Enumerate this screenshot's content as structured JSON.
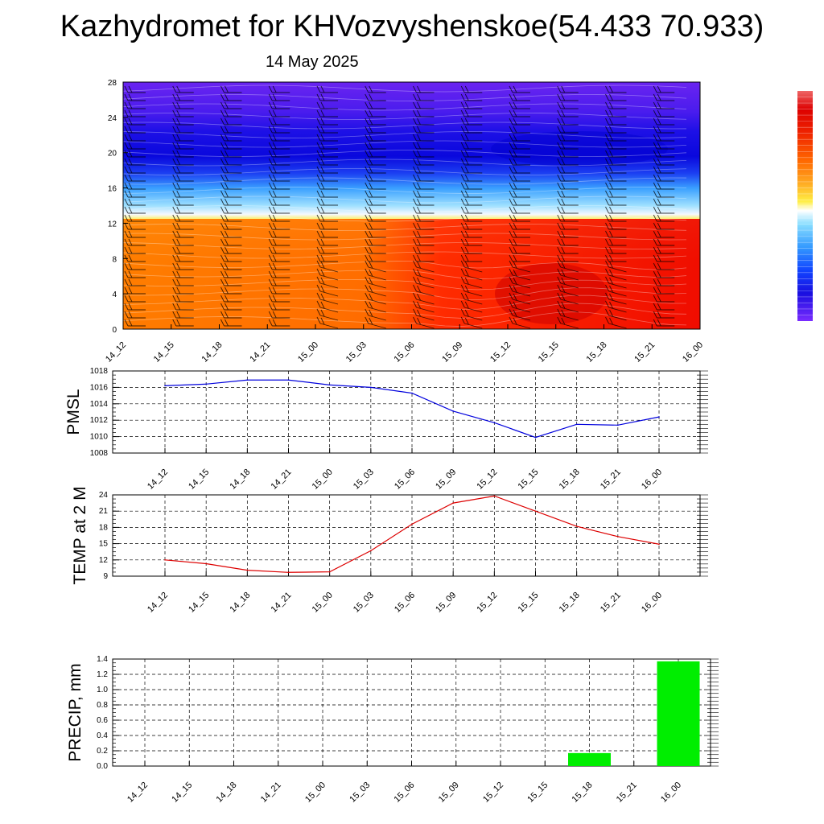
{
  "title": "Kazhydromet for KHVozvyshenskoe(54.433 70.933)",
  "subtitle": "14 May 2025",
  "colors": {
    "pmsl_line": "#0000dd",
    "temp_line": "#dd0000",
    "precip_bar": "#00ee00",
    "axis": "#000000",
    "grid": "#000000"
  },
  "chart_data": [
    {
      "type": "heatmap",
      "title": "",
      "xlabel": "",
      "ylabel": "",
      "categories": [
        "14_12",
        "14_15",
        "14_18",
        "14_21",
        "15_00",
        "15_03",
        "15_06",
        "15_09",
        "15_12",
        "15_15",
        "15_18",
        "15_21",
        "16_00"
      ],
      "yticks": [
        0,
        4,
        8,
        12,
        16,
        20,
        24,
        28
      ],
      "ylim": [
        0,
        28
      ],
      "layers": [
        {
          "y0": 0,
          "y1": 12.5,
          "description_level": "warm",
          "color_west": "#ff7a00",
          "color_east": "#ee0000"
        },
        {
          "y0": 12.5,
          "y1": 14,
          "color": "#ffee66"
        },
        {
          "y0": 14,
          "y1": 17,
          "color": "#55bbff"
        },
        {
          "y0": 17,
          "y1": 24,
          "color": "#1111ee"
        },
        {
          "y0": 24,
          "y1": 28,
          "color": "#6622ee"
        }
      ],
      "wind_barbs": true,
      "colorbar": [
        "#7a2bff",
        "#5522ee",
        "#2211ee",
        "#0000dd",
        "#1144ff",
        "#3388ff",
        "#55bbff",
        "#88ddff",
        "#ffffff",
        "#ffff66",
        "#ffcc33",
        "#ff9922",
        "#ff7700",
        "#ff4400",
        "#ee0000",
        "#cc0000",
        "#ee6666"
      ]
    },
    {
      "type": "line",
      "ylabel": "PMSL",
      "categories": [
        "14_12",
        "14_15",
        "14_18",
        "14_21",
        "15_00",
        "15_03",
        "15_06",
        "15_09",
        "15_12",
        "15_15",
        "15_18",
        "15_21",
        "16_00"
      ],
      "yticks": [
        1008,
        1010,
        1012,
        1014,
        1016,
        1018
      ],
      "ylim": [
        1008,
        1018
      ],
      "grid": true,
      "series": [
        {
          "values": [
            1016.2,
            1016.4,
            1016.9,
            1016.9,
            1016.3,
            1016.0,
            1015.3,
            1013.1,
            1011.7,
            1009.9,
            1011.5,
            1011.4,
            1012.4
          ]
        }
      ]
    },
    {
      "type": "line",
      "ylabel": "TEMP at 2 M",
      "categories": [
        "14_12",
        "14_15",
        "14_18",
        "14_21",
        "15_00",
        "15_03",
        "15_06",
        "15_09",
        "15_12",
        "15_15",
        "15_18",
        "15_21",
        "16_00"
      ],
      "yticks": [
        9,
        12,
        15,
        18,
        21,
        24
      ],
      "ylim": [
        9,
        24
      ],
      "grid": true,
      "series": [
        {
          "values": [
            12.0,
            11.3,
            10.1,
            9.7,
            9.8,
            13.7,
            18.6,
            22.5,
            23.8,
            21.0,
            18.2,
            16.3,
            14.9
          ]
        }
      ]
    },
    {
      "type": "bar",
      "ylabel": "PRECIP, mm",
      "categories": [
        "14_12",
        "14_15",
        "14_18",
        "14_21",
        "15_00",
        "15_03",
        "15_06",
        "15_09",
        "15_12",
        "15_15",
        "15_18",
        "15_21",
        "16_00"
      ],
      "yticks": [
        "0.0",
        "0.2",
        "0.4",
        "0.6",
        "0.8",
        "1.0",
        "1.2",
        "1.4"
      ],
      "ylim": [
        0,
        1.4
      ],
      "grid": true,
      "values": [
        0,
        0,
        0,
        0,
        0,
        0,
        0,
        0,
        0,
        0,
        0.17,
        0,
        1.37
      ]
    }
  ]
}
